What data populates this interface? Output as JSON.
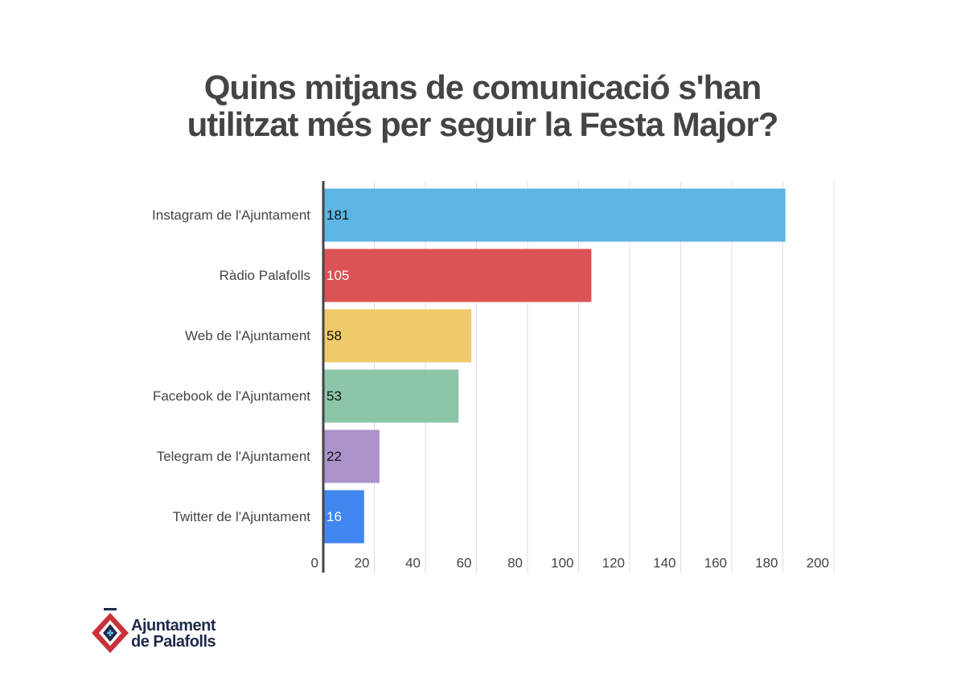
{
  "chart_data": {
    "type": "hbar",
    "title": "Quins mitjans de comunicació s'han utilitzat més per seguir la Festa Major?",
    "categories": [
      "Instagram de l'Ajuntament",
      "Ràdio Palafolls",
      "Web de l'Ajuntament",
      "Facebook de l'Ajuntament",
      "Telegram de l'Ajuntament",
      "Twitter de l'Ajuntament"
    ],
    "values": [
      181,
      105,
      58,
      53,
      22,
      16
    ],
    "colors": [
      "#5db5e6",
      "#dc5355",
      "#efca6a",
      "#8dc5a8",
      "#ac92cb",
      "#4286f0"
    ],
    "value_label_colors": [
      "#111111",
      "#ffffff",
      "#111111",
      "#111111",
      "#111111",
      "#ffffff"
    ],
    "xlim": [
      0,
      200
    ],
    "xticks": [
      0,
      20,
      40,
      60,
      80,
      100,
      120,
      140,
      160,
      180,
      200
    ],
    "grid": true
  },
  "logo": [
    "Ajuntament",
    "de Palafolls"
  ]
}
